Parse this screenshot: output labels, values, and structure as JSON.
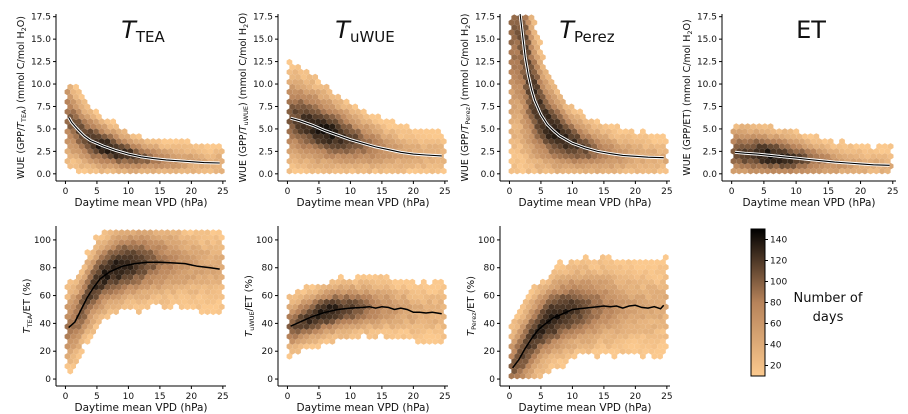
{
  "colorbar": {
    "label_line1": "Number of",
    "label_line2": "days",
    "ticks": [
      20,
      40,
      60,
      80,
      100,
      120,
      140
    ],
    "range": [
      10,
      150
    ],
    "color_low": "#fbc98e",
    "color_mid": "#b7835a",
    "color_high": "#000000"
  },
  "chart_data": [
    {
      "type": "heatmap",
      "subtype": "hexbin-with-line",
      "title_main": "T",
      "title_sub": "TEA",
      "xlabel": "Daytime mean VPD (hPa)",
      "ylabel_main": "WUE (GPP/",
      "ylabel_italic": "T",
      "ylabel_sub": "TEA",
      "ylabel_end": ") (mmol C/mol H",
      "ylabel_sub2": "2",
      "ylabel_tail": "O)",
      "xlim": [
        -1.5,
        25.5
      ],
      "ylim": [
        -0.8,
        17.8
      ],
      "xticks": [
        0,
        5,
        10,
        15,
        20,
        25
      ],
      "yticks": [
        0.0,
        2.5,
        5.0,
        7.5,
        10.0,
        12.5,
        15.0,
        17.5
      ],
      "ytick_labels": [
        "0.0",
        "2.5",
        "5.0",
        "7.5",
        "10.0",
        "12.5",
        "15.0",
        "17.5"
      ],
      "line": {
        "x": [
          0.5,
          1,
          2,
          3,
          4,
          5,
          6,
          8,
          10,
          12,
          14,
          16,
          18,
          20,
          22,
          24.5
        ],
        "y": [
          6.3,
          5.7,
          4.9,
          4.2,
          3.7,
          3.4,
          3.1,
          2.6,
          2.2,
          1.9,
          1.7,
          1.55,
          1.45,
          1.35,
          1.25,
          1.2
        ]
      },
      "cloud": {
        "base": "power",
        "a": 6.3,
        "b": 1.0,
        "c": 0.6,
        "spread": 0.35,
        "peak_x": 7,
        "max_y": 10.2
      }
    },
    {
      "type": "heatmap",
      "subtype": "hexbin-with-line",
      "title_main": "T",
      "title_sub": "uWUE",
      "xlabel": "Daytime mean VPD (hPa)",
      "ylabel_main": "WUE (GPP/",
      "ylabel_italic": "T",
      "ylabel_sub": "uWUE",
      "ylabel_end": ") (mmol C/mol H",
      "ylabel_sub2": "2",
      "ylabel_tail": "O)",
      "xlim": [
        -1.5,
        25.5
      ],
      "ylim": [
        -0.8,
        17.8
      ],
      "xticks": [
        0,
        5,
        10,
        15,
        20,
        25
      ],
      "yticks": [
        0.0,
        2.5,
        5.0,
        7.5,
        10.0,
        12.5,
        15.0,
        17.5
      ],
      "ytick_labels": [
        "0.0",
        "2.5",
        "5.0",
        "7.5",
        "10.0",
        "12.5",
        "15.0",
        "17.5"
      ],
      "line": {
        "x": [
          0.5,
          2,
          4,
          6,
          8,
          10,
          12,
          14,
          16,
          18,
          20,
          22,
          24.5
        ],
        "y": [
          6.2,
          5.9,
          5.4,
          4.8,
          4.3,
          3.8,
          3.4,
          3.0,
          2.7,
          2.4,
          2.2,
          2.1,
          2.0
        ]
      },
      "cloud": {
        "base": "line",
        "spread": 0.4,
        "peak_x": 6,
        "max_y": 13.0
      }
    },
    {
      "type": "heatmap",
      "subtype": "hexbin-with-line",
      "title_main": "T",
      "title_sub": "Perez",
      "xlabel": "Daytime mean VPD (hPa)",
      "ylabel_main": "WUE (GPP/",
      "ylabel_italic": "T",
      "ylabel_sub": "Perez",
      "ylabel_end": ") (mmol C/mol H",
      "ylabel_sub2": "2",
      "ylabel_tail": "O)",
      "xlim": [
        -1.5,
        25.5
      ],
      "ylim": [
        -0.8,
        17.8
      ],
      "xticks": [
        0,
        5,
        10,
        15,
        20,
        25
      ],
      "yticks": [
        0.0,
        2.5,
        5.0,
        7.5,
        10.0,
        12.5,
        15.0,
        17.5
      ],
      "ytick_labels": [
        "0.0",
        "2.5",
        "5.0",
        "7.5",
        "10.0",
        "12.5",
        "15.0",
        "17.5"
      ],
      "line": {
        "x": [
          1.7,
          2,
          2.5,
          3,
          3.5,
          4,
          5,
          6,
          7,
          8,
          10,
          12,
          14,
          16,
          18,
          20,
          22,
          24.5
        ],
        "y": [
          17.8,
          16.0,
          13.0,
          11.0,
          9.4,
          8.2,
          6.6,
          5.5,
          4.8,
          4.2,
          3.4,
          2.9,
          2.5,
          2.25,
          2.05,
          1.95,
          1.85,
          1.8
        ]
      },
      "cloud": {
        "base": "line",
        "spread": 0.45,
        "peak_x": 7,
        "max_y": 17.8
      }
    },
    {
      "type": "heatmap",
      "subtype": "hexbin-with-line",
      "title_main": "ET",
      "title_sub": "",
      "xlabel": "Daytime mean VPD (hPa)",
      "ylabel_main": "WUE (GPP/ET) (mmol C/mol H",
      "ylabel_italic": "",
      "ylabel_sub": "",
      "ylabel_end": "",
      "ylabel_sub2": "2",
      "ylabel_tail": "O)",
      "xlim": [
        -1.5,
        25.5
      ],
      "ylim": [
        -0.8,
        17.8
      ],
      "xticks": [
        0,
        5,
        10,
        15,
        20,
        25
      ],
      "yticks": [
        0.0,
        2.5,
        5.0,
        7.5,
        10.0,
        12.5,
        15.0,
        17.5
      ],
      "ytick_labels": [
        "0.0",
        "2.5",
        "5.0",
        "7.5",
        "10.0",
        "12.5",
        "15.0",
        "17.5"
      ],
      "line": {
        "x": [
          0.5,
          2,
          4,
          6,
          8,
          10,
          12,
          14,
          16,
          18,
          20,
          22,
          24.5
        ],
        "y": [
          2.4,
          2.3,
          2.2,
          2.05,
          1.9,
          1.75,
          1.6,
          1.45,
          1.3,
          1.2,
          1.1,
          1.0,
          0.95
        ]
      },
      "cloud": {
        "base": "line",
        "spread": 0.55,
        "peak_x": 6,
        "max_y": 5.5
      }
    },
    {
      "type": "heatmap",
      "subtype": "hexbin-with-line",
      "title_main": "",
      "title_sub": "",
      "xlabel": "Daytime mean VPD (hPa)",
      "ylabel_main": "",
      "ylabel_italic": "T",
      "ylabel_sub": "TEA",
      "ylabel_end": "/ET (%)",
      "ylabel_sub2": "",
      "ylabel_tail": "",
      "xlim": [
        -1.5,
        25.5
      ],
      "ylim": [
        -5,
        110
      ],
      "xticks": [
        0,
        5,
        10,
        15,
        20,
        25
      ],
      "yticks": [
        0,
        20,
        40,
        60,
        80,
        100
      ],
      "ytick_labels": [
        "0",
        "20",
        "40",
        "60",
        "80",
        "100"
      ],
      "line": {
        "x": [
          0.5,
          1.5,
          2.5,
          3.5,
          4.5,
          5.5,
          7,
          9,
          11,
          13,
          15,
          17,
          19,
          20,
          21,
          22,
          23,
          24.5
        ],
        "y": [
          37,
          41,
          50,
          59,
          66,
          72,
          77,
          81,
          83,
          84,
          84,
          83.5,
          83,
          82,
          81,
          80.5,
          80,
          79
        ]
      },
      "cloud": {
        "base": "band",
        "spread": 15,
        "peak_x": 8,
        "peak_y": 84,
        "max_y": 108
      }
    },
    {
      "type": "heatmap",
      "subtype": "hexbin-with-line",
      "title_main": "",
      "title_sub": "",
      "xlabel": "Daytime mean VPD (hPa)",
      "ylabel_main": "",
      "ylabel_italic": "T",
      "ylabel_sub": "uWUE",
      "ylabel_end": "/ET (%)",
      "ylabel_sub2": "",
      "ylabel_tail": "",
      "xlim": [
        -1.5,
        25.5
      ],
      "ylim": [
        -5,
        110
      ],
      "xticks": [
        0,
        5,
        10,
        15,
        20,
        25
      ],
      "yticks": [
        0,
        20,
        40,
        60,
        80,
        100
      ],
      "ytick_labels": [
        "0",
        "20",
        "40",
        "60",
        "80",
        "100"
      ],
      "line": {
        "x": [
          0.5,
          2,
          4,
          6,
          8,
          10,
          12,
          13,
          14,
          15,
          16,
          17,
          18,
          19,
          20,
          21,
          22,
          23,
          24.5
        ],
        "y": [
          38,
          41,
          45,
          48,
          50,
          51,
          51.5,
          52,
          51,
          52,
          51.5,
          50,
          51,
          50,
          48,
          48,
          47.5,
          48,
          47
        ]
      },
      "cloud": {
        "base": "band",
        "spread": 10,
        "peak_x": 6,
        "peak_y": 50,
        "max_y": 78
      }
    },
    {
      "type": "heatmap",
      "subtype": "hexbin-with-line",
      "title_main": "",
      "title_sub": "",
      "xlabel": "Daytime mean VPD (hPa)",
      "ylabel_main": "",
      "ylabel_italic": "T",
      "ylabel_sub": "Perez",
      "ylabel_end": "/ET (%)",
      "ylabel_sub2": "",
      "ylabel_tail": "",
      "xlim": [
        -1.5,
        25.5
      ],
      "ylim": [
        -5,
        110
      ],
      "xticks": [
        0,
        5,
        10,
        15,
        20,
        25
      ],
      "yticks": [
        0,
        20,
        40,
        60,
        80,
        100
      ],
      "ytick_labels": [
        "0",
        "20",
        "40",
        "60",
        "80",
        "100"
      ],
      "line": {
        "x": [
          0.5,
          1.5,
          2.5,
          3.5,
          4.5,
          5.5,
          7,
          8.5,
          10,
          12,
          14,
          15,
          16,
          17,
          18,
          19,
          20,
          21,
          22,
          23,
          24,
          24.5
        ],
        "y": [
          8,
          14,
          22,
          29,
          35,
          39,
          44,
          47,
          50,
          51,
          52,
          52.5,
          52,
          52.5,
          51,
          52.5,
          53,
          51.5,
          51,
          52,
          50.5,
          53
        ]
      },
      "cloud": {
        "base": "band",
        "spread": 16,
        "peak_x": 7,
        "peak_y": 45,
        "max_y": 98
      }
    }
  ]
}
